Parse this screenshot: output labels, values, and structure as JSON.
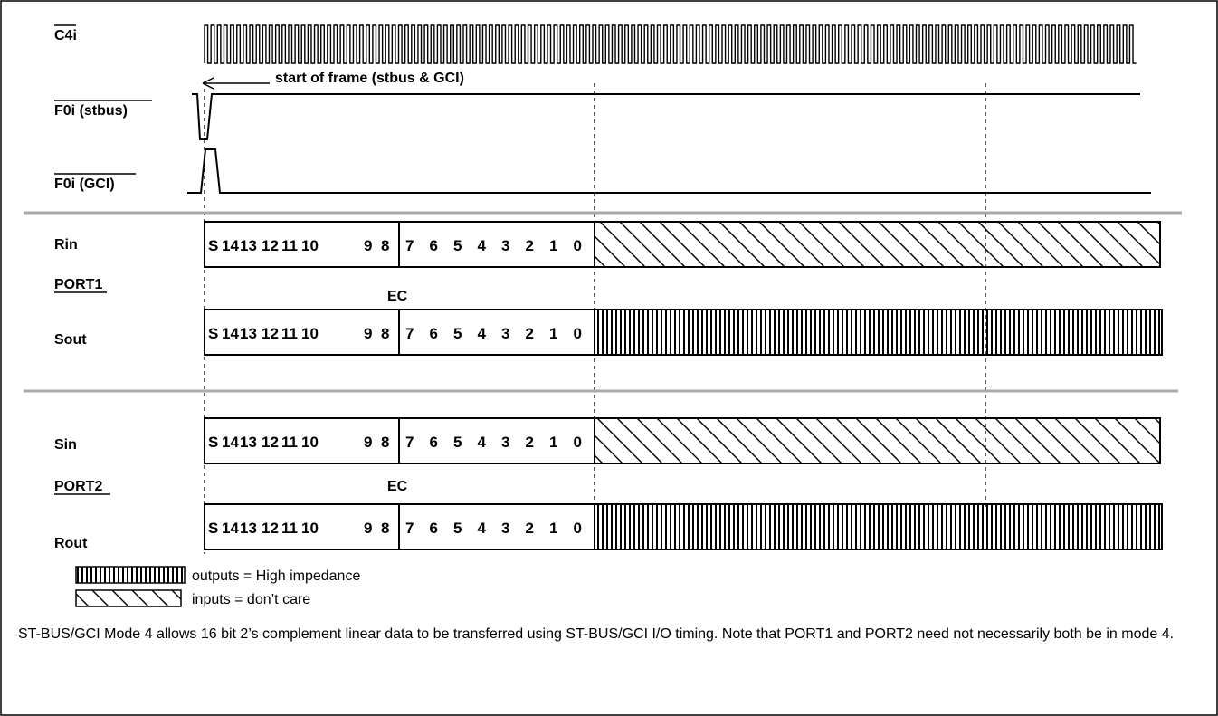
{
  "signals": {
    "c4i": "C4i",
    "f0i_stbus": "F0i (stbus)",
    "f0i_gci": "F0i (GCI)",
    "rin": "Rin",
    "port1": "PORT1",
    "sout": "Sout",
    "sin": "Sin",
    "port2": "PORT2",
    "rout": "Rout"
  },
  "annotations": {
    "start_of_frame": "start of frame (stbus & GCI)",
    "ec_port1": "EC",
    "ec_port2": "EC"
  },
  "data_frame": {
    "high_byte_bits": [
      "S",
      "14",
      "13",
      "12",
      "11",
      "10",
      "9",
      "8"
    ],
    "low_byte_bits": [
      "7",
      "6",
      "5",
      "4",
      "3",
      "2",
      "1",
      "0"
    ]
  },
  "legend": {
    "high_impedance": "outputs = High impedance",
    "dont_care": "inputs = don’t care"
  },
  "caption": "ST-BUS/GCI Mode 4 allows 16 bit  2’s complement linear data to be transferred using ST-BUS/GCI I/O timing. Note that PORT1 and PORT2 need not necessarily both be in mode 4."
}
